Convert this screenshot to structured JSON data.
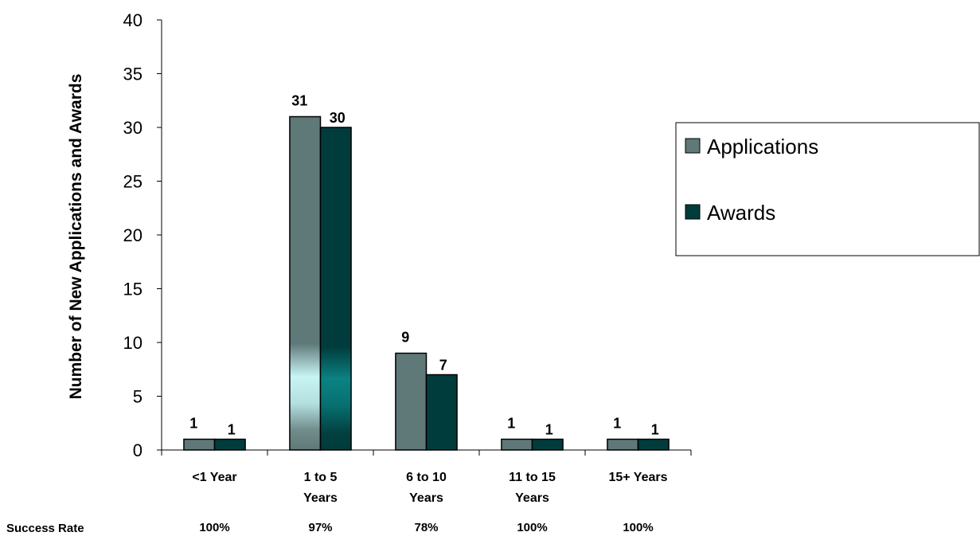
{
  "chart_data": {
    "type": "bar",
    "title": "",
    "xlabel": "",
    "ylabel": "Number of New Applications and Awards",
    "ylim": [
      0,
      40
    ],
    "yticks": [
      0,
      5,
      10,
      15,
      20,
      25,
      30,
      35,
      40
    ],
    "grid": false,
    "legend_position": "right",
    "categories": [
      [
        "<1 Year"
      ],
      [
        "1 to 5",
        "Years"
      ],
      [
        "6 to 10",
        "Years"
      ],
      [
        "11 to 15",
        "Years"
      ],
      [
        "15+ Years"
      ]
    ],
    "series": [
      {
        "name": "Applications",
        "values": [
          1,
          31,
          9,
          1,
          1
        ],
        "color": "#5f7878"
      },
      {
        "name": "Awards",
        "values": [
          1,
          30,
          7,
          1,
          1
        ],
        "color": "#003c3c"
      }
    ],
    "data_labels": true,
    "success_rate": {
      "label": "Success Rate",
      "values": [
        "100%",
        "97%",
        "78%",
        "100%",
        "100%"
      ]
    }
  }
}
